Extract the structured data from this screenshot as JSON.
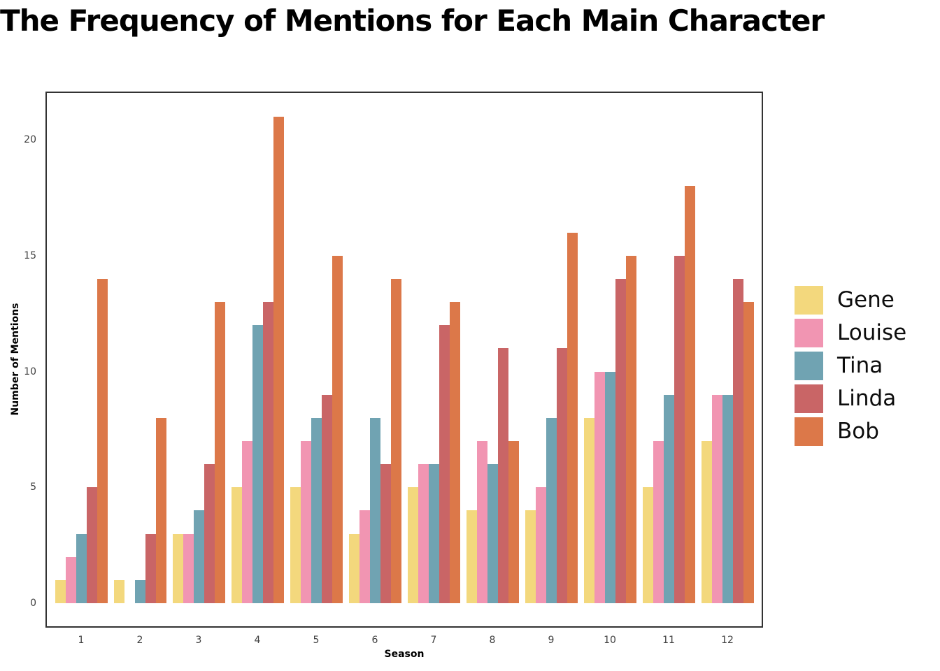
{
  "title": "The Frequency of Mentions for Each Main Character",
  "chart_data": {
    "type": "bar",
    "title": "The Frequency of Mentions for Each Main Character",
    "xlabel": "Season",
    "ylabel": "Number of Mentions",
    "categories": [
      "1",
      "2",
      "3",
      "4",
      "5",
      "6",
      "7",
      "8",
      "9",
      "10",
      "11",
      "12"
    ],
    "series": [
      {
        "name": "Gene",
        "color": "#F3D87D",
        "values": [
          1,
          1,
          3,
          5,
          5,
          3,
          5,
          4,
          4,
          8,
          5,
          7
        ]
      },
      {
        "name": "Louise",
        "color": "#F195B2",
        "values": [
          2,
          0,
          3,
          7,
          7,
          4,
          6,
          7,
          5,
          10,
          7,
          9
        ]
      },
      {
        "name": "Tina",
        "color": "#70A3B2",
        "values": [
          3,
          1,
          4,
          12,
          8,
          8,
          6,
          6,
          8,
          10,
          9,
          9
        ]
      },
      {
        "name": "Linda",
        "color": "#C96566",
        "values": [
          5,
          3,
          6,
          13,
          9,
          6,
          12,
          11,
          11,
          14,
          15,
          14
        ]
      },
      {
        "name": "Bob",
        "color": "#DC7849",
        "values": [
          14,
          8,
          13,
          21,
          15,
          14,
          13,
          7,
          16,
          15,
          18,
          13
        ]
      }
    ],
    "yticks": [
      0,
      5,
      10,
      15,
      20
    ],
    "ylim": [
      -1.06,
      22.06
    ],
    "grid": false,
    "legend_position": "right",
    "axis_color": "#333333",
    "tick_label_color": "#404040"
  }
}
